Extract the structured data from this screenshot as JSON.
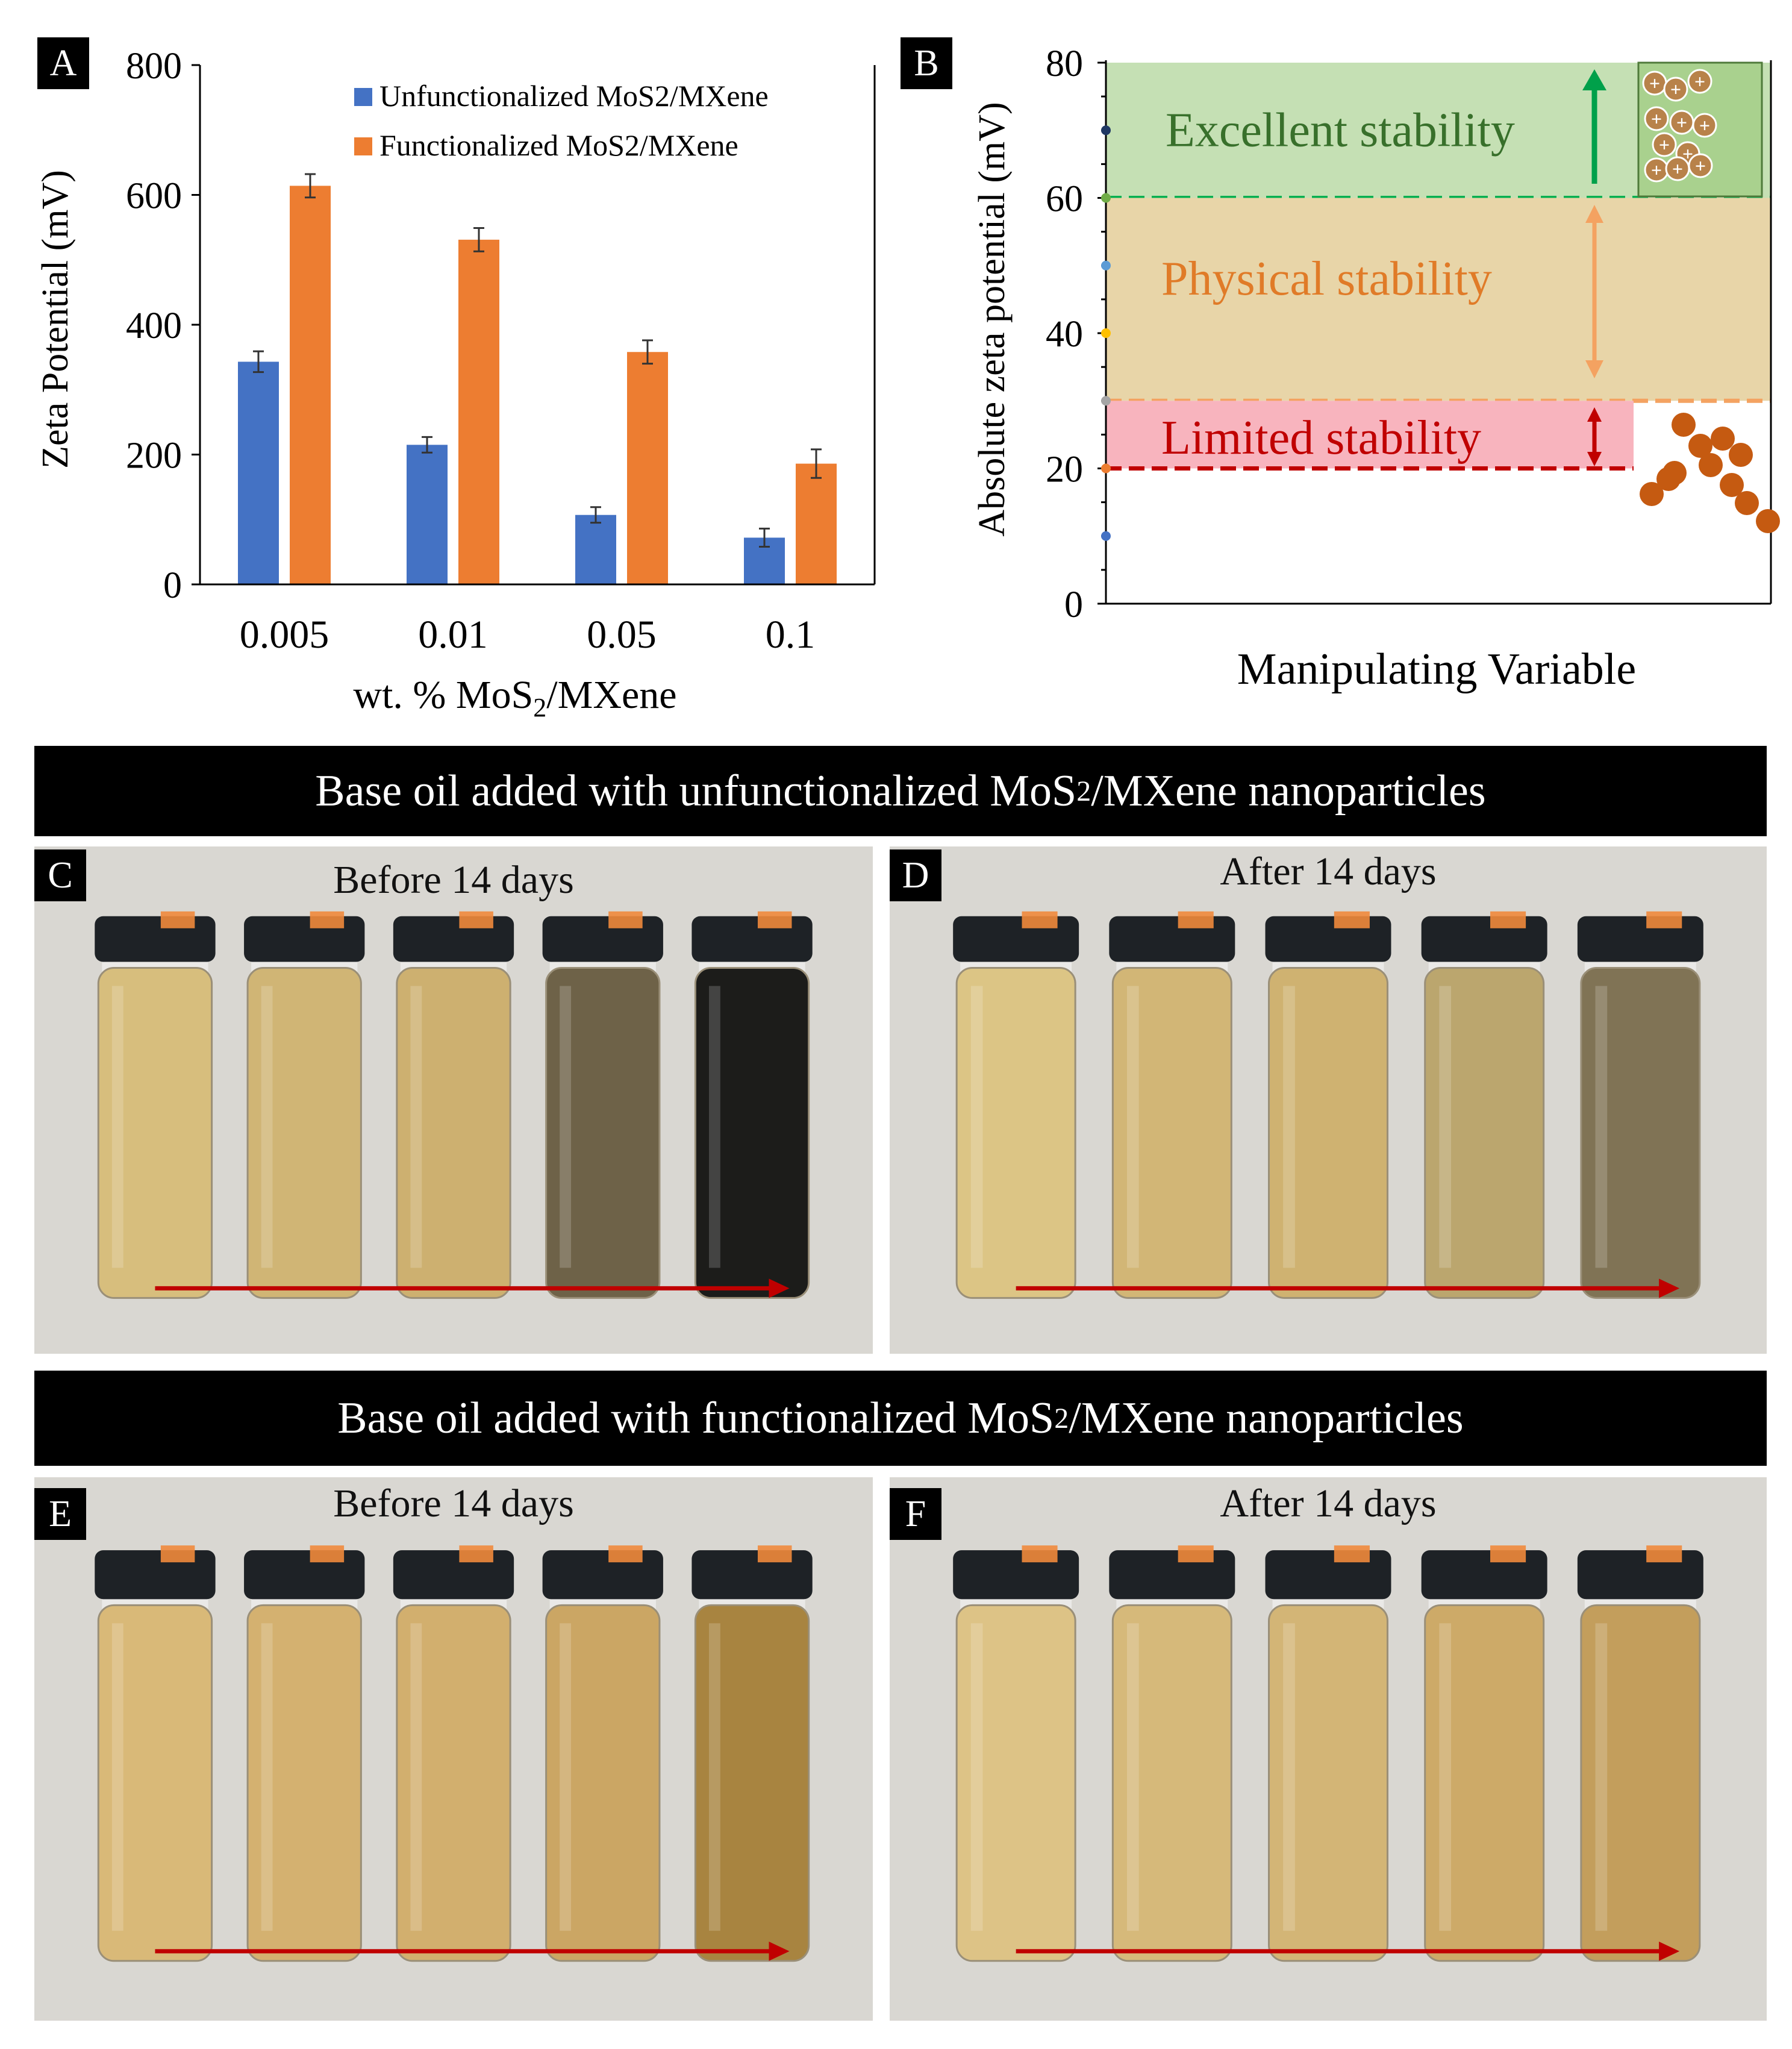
{
  "panels": {
    "a": "A",
    "b": "B",
    "c": "C",
    "d": "D",
    "e": "E",
    "f": "F"
  },
  "chart_data": [
    {
      "type": "bar",
      "categories": [
        "0.005",
        "0.01",
        "0.05",
        "0.1"
      ],
      "series": [
        {
          "name": "Unfunctionalized MoS2/MXene",
          "values": [
            343,
            215,
            107,
            72
          ],
          "errors": [
            16,
            12,
            12,
            14
          ],
          "color": "#4472C4"
        },
        {
          "name": "Functionalized MoS2/MXene",
          "values": [
            614,
            531,
            358,
            186
          ],
          "errors": [
            18,
            18,
            18,
            22
          ],
          "color": "#ED7D31"
        }
      ],
      "title": "",
      "xlabel_prefix": "wt. % MoS",
      "xlabel_sub": "2",
      "xlabel_suffix": "/MXene",
      "ylabel": "Zeta Potential (mV)",
      "ylim": [
        0,
        800
      ],
      "yticks": [
        "0",
        "200",
        "400",
        "600",
        "800"
      ],
      "legend": "top-right"
    },
    {
      "type": "other",
      "ylabel": "Absolute zeta potential (mV)",
      "xlabel": "Manipulating Variable",
      "ylim": [
        0,
        80
      ],
      "yticks": [
        "0",
        "20",
        "40",
        "60",
        "80"
      ],
      "zones": [
        {
          "label": "Excellent stability",
          "from": 60,
          "to": 80,
          "color": "#C5E0B4",
          "text_color": "#38702B",
          "line_color": "#00B050"
        },
        {
          "label": "Physical stability",
          "from": 30,
          "to": 60,
          "color": "#E8D5A8",
          "text_color": "#E07B28",
          "line_color": "#F4A261"
        },
        {
          "label": "Limited stability",
          "from": 20,
          "to": 30,
          "color": "#F8B4BE",
          "text_color": "#C00000",
          "line_color": "#C00000"
        }
      ],
      "tick_dots": [
        {
          "value": 70,
          "color": "#1F3864"
        },
        {
          "value": 60,
          "color": "#70AD47"
        },
        {
          "value": 50,
          "color": "#5B9BD5"
        },
        {
          "value": 40,
          "color": "#FFC000"
        },
        {
          "value": 30,
          "color": "#A5A5A5"
        },
        {
          "value": 20,
          "color": "#ED7D31"
        },
        {
          "value": 10,
          "color": "#4472C4"
        }
      ],
      "inset_symbol": "+"
    }
  ],
  "banners": {
    "top": {
      "prefix": "Base oil added with  unfunctionalized MoS",
      "sub": "2",
      "suffix": "/MXene nanoparticles"
    },
    "bottom": {
      "prefix": "Base oil added with functionalized MoS",
      "sub": "2",
      "suffix": "/MXene nanoparticles"
    }
  },
  "photos": {
    "c": {
      "title": "Before 14 days",
      "vials": [
        "#D7BE7D",
        "#D0B575",
        "#CDB070",
        "#6E6248",
        "#1C1C1A"
      ]
    },
    "d": {
      "title": "After 14 days",
      "vials": [
        "#DCC585",
        "#D2B676",
        "#CFB271",
        "#BBA66E",
        "#807355"
      ]
    },
    "e": {
      "title": "Before 14 days",
      "vials": [
        "#D9B978",
        "#D4B170",
        "#D2AF6E",
        "#CBA664",
        "#A88440"
      ]
    },
    "f": {
      "title": "After 14 days",
      "vials": [
        "#DDC386",
        "#D6B97A",
        "#D3B576",
        "#CDAA68",
        "#C39E5C"
      ]
    }
  }
}
